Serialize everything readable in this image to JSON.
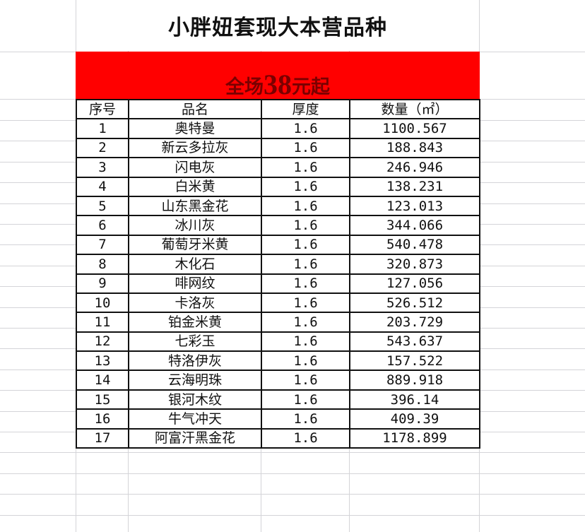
{
  "title": "小胖妞套现大本营品种",
  "banner": {
    "prefix": "全场",
    "price": "38",
    "suffix": "元起"
  },
  "table": {
    "headers": [
      "序号",
      "品名",
      "厚度",
      "数量（㎡）"
    ],
    "rows": [
      [
        "1",
        "奥特曼",
        "1.6",
        "1100.567"
      ],
      [
        "2",
        "新云多拉灰",
        "1.6",
        "188.843"
      ],
      [
        "3",
        "闪电灰",
        "1.6",
        "246.946"
      ],
      [
        "4",
        "白米黄",
        "1.6",
        "138.231"
      ],
      [
        "5",
        "山东黑金花",
        "1.6",
        "123.013"
      ],
      [
        "6",
        "冰川灰",
        "1.6",
        "344.066"
      ],
      [
        "7",
        "葡萄牙米黄",
        "1.6",
        "540.478"
      ],
      [
        "8",
        "木化石",
        "1.6",
        "320.873"
      ],
      [
        "9",
        "啡网纹",
        "1.6",
        "127.056"
      ],
      [
        "10",
        "卡洛灰",
        "1.6",
        "526.512"
      ],
      [
        "11",
        "铂金米黄",
        "1.6",
        "203.729"
      ],
      [
        "12",
        "七彩玉",
        "1.6",
        "543.637"
      ],
      [
        "13",
        "特洛伊灰",
        "1.6",
        "157.522"
      ],
      [
        "14",
        "云海明珠",
        "1.6",
        "889.918"
      ],
      [
        "15",
        "银河木纹",
        "1.6",
        "396.14"
      ],
      [
        "16",
        "牛气冲天",
        "1.6",
        "409.39"
      ],
      [
        "17",
        "阿富汗黑金花",
        "1.6",
        "1178.899"
      ]
    ]
  },
  "colors": {
    "banner": "#ff0000",
    "banner_text": "#7a0000"
  }
}
